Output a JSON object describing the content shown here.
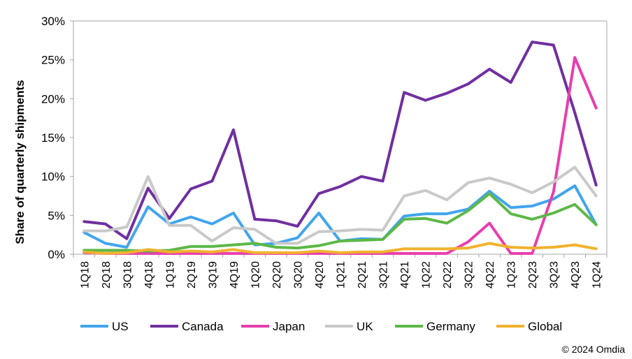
{
  "chart_data": {
    "type": "line",
    "title": "",
    "xlabel": "",
    "ylabel": "Share of quarterly shipments",
    "ylim": [
      0,
      30
    ],
    "ytick_values": [
      0,
      5,
      10,
      15,
      20,
      25,
      30
    ],
    "ytick_labels": [
      "0%",
      "5%",
      "10%",
      "15%",
      "20%",
      "25%",
      "30%"
    ],
    "categories": [
      "1Q18",
      "2Q18",
      "3Q18",
      "4Q18",
      "1Q19",
      "2Q19",
      "3Q19",
      "4Q19",
      "1Q20",
      "2Q20",
      "3Q20",
      "4Q20",
      "1Q21",
      "2Q21",
      "3Q21",
      "4Q21",
      "1Q22",
      "2Q22",
      "3Q22",
      "4Q22",
      "1Q23",
      "2Q23",
      "3Q23",
      "4Q23",
      "1Q24"
    ],
    "series": [
      {
        "name": "US",
        "color": "#41A5EE",
        "values": [
          2.8,
          1.4,
          0.9,
          6.1,
          3.9,
          4.8,
          3.9,
          5.3,
          1.2,
          1.4,
          2.1,
          5.3,
          1.7,
          2.0,
          1.9,
          4.9,
          5.2,
          5.2,
          5.8,
          8.1,
          6.0,
          6.2,
          7.1,
          8.8,
          3.8
        ]
      },
      {
        "name": "Canada",
        "color": "#7030A0",
        "values": [
          4.2,
          3.9,
          2.0,
          8.5,
          4.6,
          8.4,
          9.4,
          16.0,
          4.5,
          4.3,
          3.6,
          7.8,
          8.7,
          10.0,
          9.4,
          20.8,
          19.8,
          20.7,
          21.9,
          23.8,
          22.1,
          27.3,
          26.9,
          18.2,
          8.9
        ]
      },
      {
        "name": "Japan",
        "color": "#E83EAD",
        "values": [
          0.2,
          0.1,
          0.1,
          0.1,
          0.1,
          0.1,
          0.1,
          0.1,
          0.1,
          0.1,
          0.1,
          0.1,
          0.1,
          0.1,
          0.1,
          0.1,
          0.1,
          0.1,
          1.6,
          4.0,
          0.1,
          0.1,
          8.0,
          25.3,
          18.8
        ]
      },
      {
        "name": "UK",
        "color": "#C9C9C9",
        "values": [
          3.0,
          3.0,
          3.5,
          10.0,
          3.7,
          3.7,
          1.7,
          3.4,
          3.2,
          1.4,
          1.4,
          2.9,
          3.0,
          3.2,
          3.1,
          7.5,
          8.2,
          7.0,
          9.2,
          9.8,
          9.0,
          7.9,
          9.3,
          11.2,
          7.5
        ]
      },
      {
        "name": "Germany",
        "color": "#5DB847",
        "values": [
          0.5,
          0.5,
          0.5,
          0.4,
          0.5,
          1.0,
          1.0,
          1.2,
          1.4,
          0.9,
          0.8,
          1.1,
          1.7,
          1.8,
          1.9,
          4.5,
          4.6,
          4.0,
          5.6,
          7.8,
          5.2,
          4.5,
          5.3,
          6.4,
          3.8
        ]
      },
      {
        "name": "Global",
        "color": "#F1B22E",
        "values": [
          0.3,
          0.1,
          0.2,
          0.6,
          0.3,
          0.4,
          0.3,
          0.6,
          0.2,
          0.2,
          0.2,
          0.4,
          0.2,
          0.3,
          0.3,
          0.7,
          0.7,
          0.7,
          0.8,
          1.4,
          0.9,
          0.8,
          0.9,
          1.2,
          0.7
        ]
      }
    ],
    "grid": false,
    "legend_position": "bottom"
  },
  "copyright": "© 2024 Omdia"
}
